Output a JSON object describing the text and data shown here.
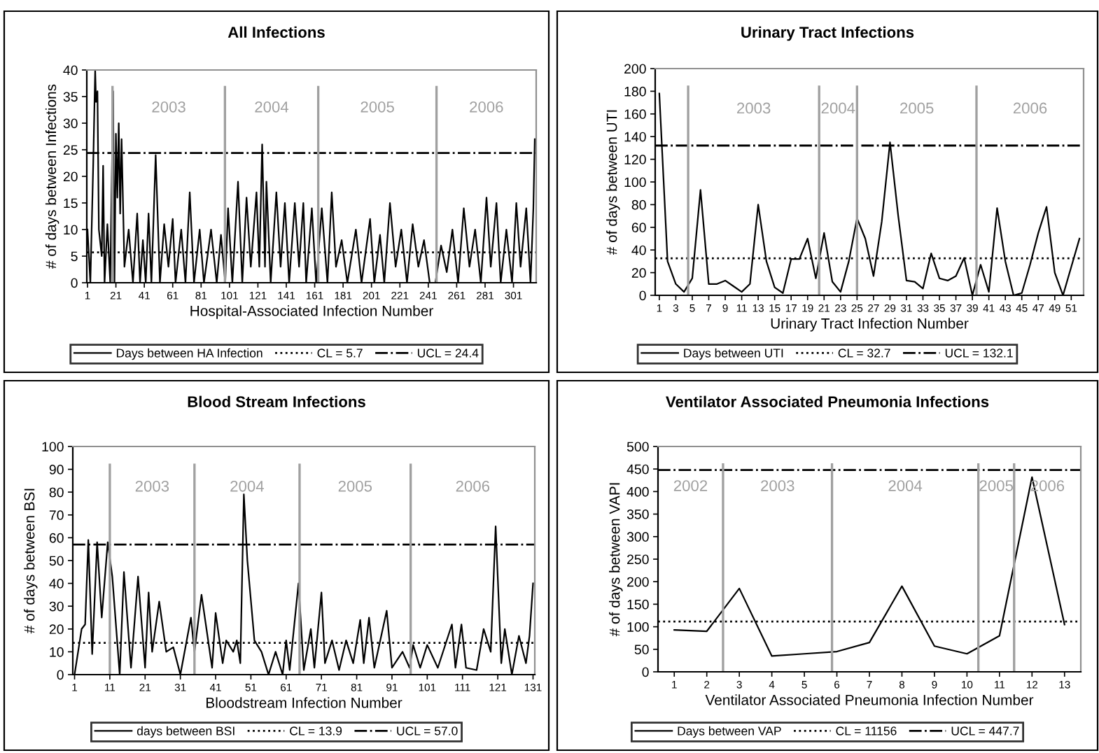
{
  "chart_data": [
    {
      "type": "line",
      "title": "All Infections",
      "xlabel": "Hospital-Associated Infection Number",
      "ylabel": "# of days between Infections",
      "series": [
        {
          "name": "Days between HA Infection",
          "color": "#000000",
          "x": [
            1,
            3,
            5,
            6.4,
            7,
            8,
            9,
            11,
            12,
            13,
            15,
            17,
            19,
            20,
            21,
            22,
            23,
            24,
            25,
            27,
            30,
            33,
            36,
            38,
            40,
            42,
            44,
            46,
            49,
            52,
            55,
            58,
            61,
            63,
            67,
            70,
            73,
            76,
            80,
            83,
            88,
            92,
            95,
            98,
            100,
            103,
            107,
            110,
            113,
            116,
            120,
            122,
            124,
            126,
            127,
            130,
            134,
            137,
            140,
            143,
            147,
            150,
            153,
            155,
            159,
            162,
            166,
            170,
            173,
            176,
            180,
            184,
            190,
            194,
            200,
            203,
            207,
            210,
            214,
            218,
            222,
            226,
            230,
            234,
            238,
            242,
            246,
            250,
            254,
            258,
            262,
            266,
            270,
            274,
            278,
            282,
            285,
            289,
            292,
            296,
            300,
            303,
            306,
            310,
            313,
            315,
            316
          ],
          "values": [
            10,
            0,
            22,
            40,
            34,
            36,
            10,
            5,
            22,
            0,
            11,
            0,
            36,
            0,
            28,
            16,
            30,
            13,
            27,
            3,
            10,
            0,
            13,
            0,
            8,
            0,
            13,
            0,
            24,
            0,
            11,
            3,
            12,
            0,
            10,
            0,
            17,
            0,
            10,
            0,
            10,
            0,
            9,
            0,
            14,
            0,
            19,
            0,
            16,
            3,
            17,
            3,
            26,
            3,
            19,
            0,
            17,
            3,
            15,
            0,
            15,
            3,
            15,
            0,
            14,
            0,
            14,
            0,
            17,
            3,
            8,
            0,
            10,
            0,
            12,
            0,
            9,
            0,
            15,
            3,
            10,
            0,
            11,
            3,
            8,
            0,
            0,
            7,
            2,
            10,
            0,
            14,
            3,
            10,
            0,
            16,
            3,
            15,
            0,
            10,
            0,
            15,
            3,
            14,
            0,
            14,
            27
          ]
        }
      ],
      "xlim": [
        0.5,
        317
      ],
      "xticks": [
        1,
        21,
        41,
        61,
        81,
        101,
        121,
        141,
        161,
        181,
        201,
        221,
        241,
        261,
        281,
        301
      ],
      "ylim": [
        0,
        40
      ],
      "yticks": [
        0,
        5,
        10,
        15,
        20,
        25,
        30,
        35,
        40
      ],
      "ref_lines": [
        {
          "axis": "y",
          "value": 5.7,
          "label": "CL = 5.7",
          "color": "#000000",
          "line_style": "dotted"
        },
        {
          "axis": "y",
          "value": 24.4,
          "label": "UCL = 24.4",
          "color": "#000000",
          "line_style": "dashdot"
        },
        {
          "axis": "x",
          "value": 18.6,
          "color": "#a0a0a0",
          "line_style": "solid"
        },
        {
          "axis": "x",
          "value": 97.8,
          "color": "#a0a0a0",
          "line_style": "solid"
        },
        {
          "axis": "x",
          "value": 163.5,
          "color": "#a0a0a0",
          "line_style": "solid"
        },
        {
          "axis": "x",
          "value": 246.8,
          "color": "#a0a0a0",
          "line_style": "solid"
        }
      ],
      "annotations": [
        "2003",
        "2004",
        "2005",
        "2006"
      ],
      "legend": "bottom",
      "grid": false,
      "marker": "none",
      "line_style": "solid"
    },
    {
      "type": "line",
      "title": "Urinary Tract Infections",
      "xlabel": "Urinary Tract Infection Number",
      "ylabel": "# of days between UTI",
      "series": [
        {
          "name": "Days between UTI",
          "color": "#000000",
          "x": [
            1,
            2,
            3,
            4,
            5,
            6,
            7,
            8,
            9,
            10,
            11,
            12,
            13,
            14,
            15,
            16,
            17,
            18,
            19,
            20,
            21,
            22,
            23,
            24,
            25,
            26,
            27,
            28,
            29,
            30,
            31,
            32,
            33,
            34,
            35,
            36,
            37,
            38,
            39,
            40,
            41,
            42,
            43,
            44,
            45,
            46,
            47,
            48,
            49,
            50,
            51,
            52
          ],
          "values": [
            178,
            30,
            10,
            3,
            15,
            93,
            10,
            10,
            13,
            8,
            3,
            10,
            80,
            30,
            7,
            2,
            32,
            32,
            50,
            15,
            55,
            12,
            3,
            30,
            68,
            50,
            17,
            65,
            135,
            70,
            13,
            12,
            6,
            37,
            15,
            13,
            17,
            33,
            0,
            27,
            3,
            77,
            30,
            0,
            2,
            27,
            55,
            78,
            20,
            0,
            25,
            50
          ]
        }
      ],
      "xlim": [
        0.5,
        52.5
      ],
      "xticks": [
        1,
        3,
        5,
        7,
        9,
        11,
        13,
        15,
        17,
        19,
        21,
        23,
        25,
        27,
        29,
        31,
        33,
        35,
        37,
        39,
        41,
        43,
        45,
        47,
        49,
        51
      ],
      "ylim": [
        0,
        200
      ],
      "yticks": [
        0,
        20,
        40,
        60,
        80,
        100,
        120,
        140,
        160,
        180,
        200
      ],
      "ref_lines": [
        {
          "axis": "y",
          "value": 32.7,
          "label": "CL = 32.7",
          "color": "#000000",
          "line_style": "dotted"
        },
        {
          "axis": "y",
          "value": 132.1,
          "label": "UCL = 132.1",
          "color": "#000000",
          "line_style": "dashdot"
        },
        {
          "axis": "x",
          "value": 4.5,
          "color": "#a0a0a0",
          "line_style": "solid"
        },
        {
          "axis": "x",
          "value": 20.4,
          "color": "#a0a0a0",
          "line_style": "solid"
        },
        {
          "axis": "x",
          "value": 25,
          "color": "#a0a0a0",
          "line_style": "solid"
        },
        {
          "axis": "x",
          "value": 39.5,
          "color": "#a0a0a0",
          "line_style": "solid"
        }
      ],
      "annotations": [
        "2003",
        "2004",
        "2005",
        "2006"
      ],
      "legend": "bottom",
      "grid": false,
      "marker": "none",
      "line_style": "solid"
    },
    {
      "type": "line",
      "title": "Blood Stream Infections",
      "xlabel": "Bloodstream Infection Number",
      "ylabel": "# of days between BSI",
      "series": [
        {
          "name": "days between BSI",
          "color": "#000000",
          "x": [
            1,
            3,
            4,
            4.9,
            6,
            7.4,
            8.7,
            10.4,
            11.7,
            13.8,
            15,
            17,
            19,
            21,
            22,
            23,
            25,
            27,
            29,
            31,
            34,
            35,
            37,
            40,
            41,
            43,
            44,
            46,
            47,
            48,
            49,
            50,
            52,
            54,
            56,
            58,
            60,
            61,
            62,
            64.5,
            66,
            68,
            69,
            71,
            72,
            74,
            76,
            78,
            80,
            82,
            83,
            84.5,
            86,
            89.5,
            91,
            94,
            96,
            97,
            99,
            101,
            104,
            108,
            109,
            110.7,
            112,
            115,
            117,
            119,
            120.4,
            122,
            123,
            125,
            127,
            129,
            130,
            131
          ],
          "values": [
            0,
            20,
            22,
            59,
            9,
            58,
            25,
            58,
            43,
            0,
            45,
            3,
            43,
            3,
            36,
            10,
            32,
            10,
            12,
            0,
            25,
            10,
            35,
            3,
            27,
            5,
            15,
            10,
            15,
            5,
            79,
            50,
            15,
            10,
            0,
            10,
            0,
            15,
            2,
            40,
            2,
            20,
            3,
            36,
            5,
            15,
            2,
            15,
            5,
            24,
            5,
            25,
            3,
            28,
            3,
            10,
            3,
            13,
            3,
            13,
            3,
            22,
            3,
            22,
            3,
            2,
            20,
            10,
            65,
            5,
            20,
            0,
            17,
            5,
            17,
            40
          ]
        }
      ],
      "xlim": [
        0.5,
        131.5
      ],
      "xticks": [
        1,
        11,
        21,
        31,
        41,
        51,
        61,
        71,
        81,
        91,
        101,
        111,
        121,
        131
      ],
      "ylim": [
        0,
        100
      ],
      "yticks": [
        0,
        10,
        20,
        30,
        40,
        50,
        60,
        70,
        80,
        90,
        100
      ],
      "ref_lines": [
        {
          "axis": "y",
          "value": 13.9,
          "label": "CL = 13.9",
          "color": "#000000",
          "line_style": "dotted"
        },
        {
          "axis": "y",
          "value": 57.0,
          "label": "UCL = 57.0",
          "color": "#000000",
          "line_style": "dashdot"
        },
        {
          "axis": "x",
          "value": 11,
          "color": "#a0a0a0",
          "line_style": "solid"
        },
        {
          "axis": "x",
          "value": 35,
          "color": "#a0a0a0",
          "line_style": "solid"
        },
        {
          "axis": "x",
          "value": 64.8,
          "color": "#a0a0a0",
          "line_style": "solid"
        },
        {
          "axis": "x",
          "value": 96.3,
          "color": "#a0a0a0",
          "line_style": "solid"
        }
      ],
      "annotations": [
        "2003",
        "2004",
        "2005",
        "2006"
      ],
      "legend": "bottom",
      "grid": false,
      "marker": "none",
      "line_style": "solid"
    },
    {
      "type": "line",
      "title": "Ventilator Associated Pneumonia Infections",
      "xlabel": "Ventilator Associated Pneumonia Infection Number",
      "ylabel": "# of days between VAPI",
      "series": [
        {
          "name": "Days between VAP",
          "color": "#000000",
          "x": [
            1,
            2,
            3,
            4,
            5,
            6,
            7,
            8,
            9,
            10,
            11,
            12,
            13
          ],
          "values": [
            93,
            90,
            185,
            35,
            40,
            45,
            65,
            190,
            57,
            40,
            80,
            432,
            105
          ]
        }
      ],
      "xlim": [
        0.5,
        13.5
      ],
      "xticks": [
        1,
        2,
        3,
        4,
        5,
        6,
        7,
        8,
        9,
        10,
        11,
        12,
        13
      ],
      "ylim": [
        0,
        500
      ],
      "yticks": [
        0,
        50,
        100,
        150,
        200,
        250,
        300,
        350,
        400,
        450,
        500
      ],
      "ref_lines": [
        {
          "axis": "y",
          "value": 111.56,
          "label": "CL = 11156",
          "color": "#000000",
          "line_style": "dotted"
        },
        {
          "axis": "y",
          "value": 447.7,
          "label": "UCL = 447.7",
          "color": "#000000",
          "line_style": "dashdot"
        },
        {
          "axis": "x",
          "value": 2.5,
          "color": "#a0a0a0",
          "line_style": "solid"
        },
        {
          "axis": "x",
          "value": 5.85,
          "color": "#a0a0a0",
          "line_style": "solid"
        },
        {
          "axis": "x",
          "value": 10.35,
          "color": "#a0a0a0",
          "line_style": "solid"
        },
        {
          "axis": "x",
          "value": 11.45,
          "color": "#a0a0a0",
          "line_style": "solid"
        }
      ],
      "annotations": [
        "2002",
        "2003",
        "2004",
        "2005",
        "2006"
      ],
      "legend": "bottom",
      "grid": false,
      "marker": "none",
      "line_style": "solid"
    }
  ]
}
